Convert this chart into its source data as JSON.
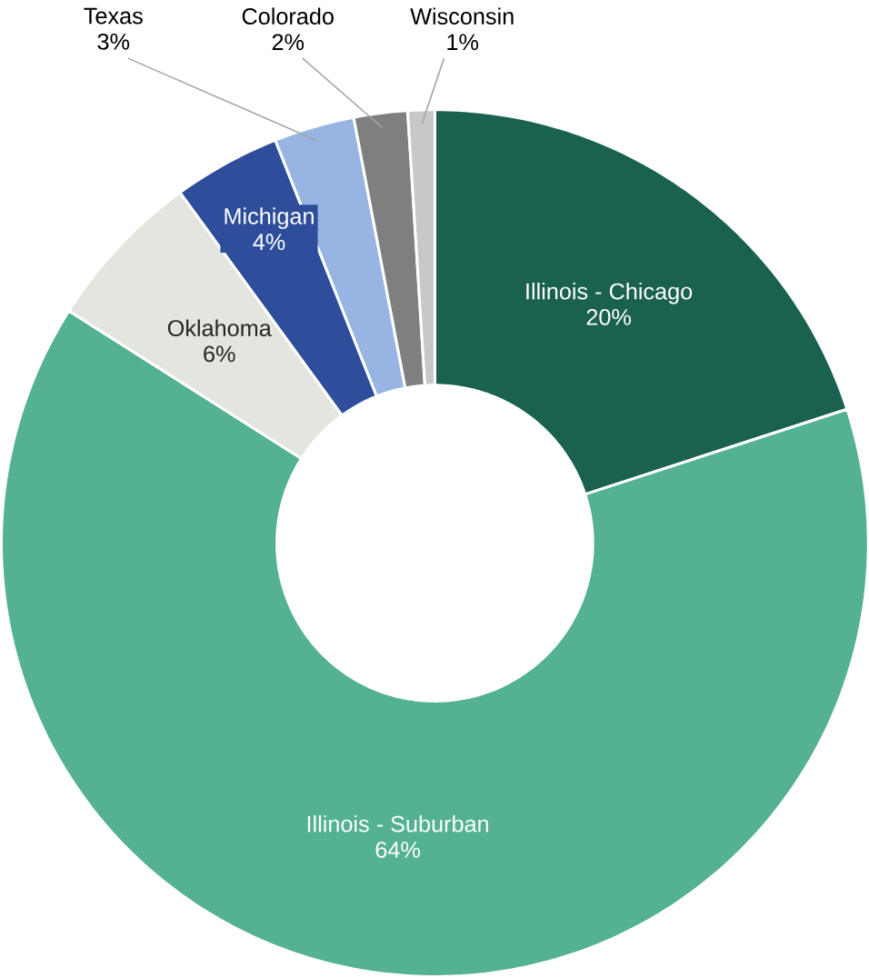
{
  "chart_data": {
    "type": "donut",
    "categories": [
      "Illinois - Chicago",
      "Illinois - Suburban",
      "Oklahoma",
      "Michigan",
      "Texas",
      "Colorado",
      "Wisconsin"
    ],
    "values": [
      20,
      64,
      6,
      4,
      3,
      2,
      1
    ],
    "value_labels": [
      "20%",
      "64%",
      "6%",
      "4%",
      "3%",
      "2%",
      "1%"
    ],
    "colors": [
      "#1a6150",
      "#55b194",
      "#e2e6de",
      "#2e4d9b",
      "#97b4e3",
      "#7f7f7f",
      "#c8c8c8"
    ]
  }
}
